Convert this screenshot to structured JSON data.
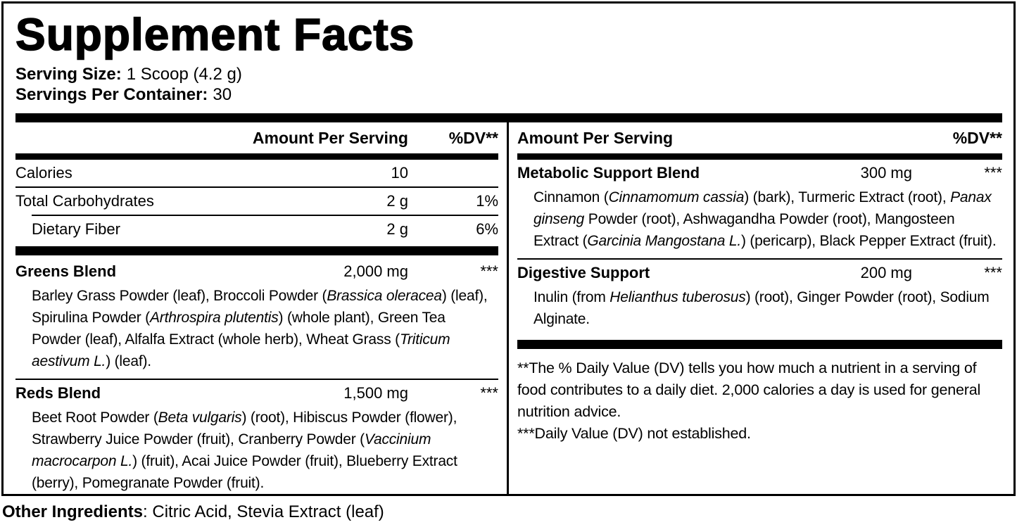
{
  "colors": {
    "text": "#000000",
    "background": "#ffffff"
  },
  "title": "Supplement Facts",
  "serving": {
    "size_label": "Serving Size:",
    "size_value": "1 Scoop (4.2 g)",
    "per_container_label": "Servings Per Container:",
    "per_container_value": "30"
  },
  "columns": {
    "left": {
      "header": {
        "amount": "Amount Per Serving",
        "dv": "%DV**"
      },
      "nutrients": [
        {
          "name": "Calories",
          "amount": "10",
          "dv": ""
        },
        {
          "name": "Total Carbohydrates",
          "amount": "2 g",
          "dv": "1%"
        },
        {
          "name": "Dietary Fiber",
          "amount": "2 g",
          "dv": "6%"
        }
      ],
      "blends": [
        {
          "name": "Greens Blend",
          "amount": "2,000 mg",
          "dv": "***",
          "ingredients": [
            {
              "t": "Barley Grass Powder (leaf), Broccoli Powder ("
            },
            {
              "t": "Brassica oleracea",
              "i": true
            },
            {
              "t": ") (leaf), Spirulina Powder ("
            },
            {
              "t": "Arthrospira plutentis",
              "i": true
            },
            {
              "t": ") (whole plant), Green Tea Powder (leaf), Alfalfa Extract (whole herb), Wheat Grass ("
            },
            {
              "t": "Triticum aestivum L.",
              "i": true
            },
            {
              "t": ") (leaf)."
            }
          ]
        },
        {
          "name": "Reds Blend",
          "amount": "1,500 mg",
          "dv": "***",
          "ingredients": [
            {
              "t": "Beet Root Powder ("
            },
            {
              "t": "Beta vulgaris",
              "i": true
            },
            {
              "t": ") (root), Hibiscus Powder (flower), Strawberry Juice Powder (fruit), Cranberry Powder ("
            },
            {
              "t": "Vaccinium macrocarpon L.",
              "i": true
            },
            {
              "t": ") (fruit), Acai Juice Powder (fruit), Blueberry Extract (berry), Pomegranate Powder (fruit)."
            }
          ]
        }
      ]
    },
    "right": {
      "header": {
        "amount": "Amount Per Serving",
        "dv": "%DV**"
      },
      "blends": [
        {
          "name": "Metabolic Support Blend",
          "amount": "300 mg",
          "dv": "***",
          "ingredients": [
            {
              "t": "Cinnamon ("
            },
            {
              "t": "Cinnamomum cassia",
              "i": true
            },
            {
              "t": ") (bark), Turmeric Extract (root), "
            },
            {
              "t": "Panax ginseng",
              "i": true
            },
            {
              "t": " Powder (root), Ashwagandha Powder (root), Mangosteen Extract ("
            },
            {
              "t": "Garcinia Mangostana L.",
              "i": true
            },
            {
              "t": ") (pericarp), Black Pepper Extract (fruit)."
            }
          ]
        },
        {
          "name": "Digestive Support",
          "amount": "200 mg",
          "dv": "***",
          "ingredients": [
            {
              "t": "Inulin (from "
            },
            {
              "t": "Helianthus tuberosus",
              "i": true
            },
            {
              "t": ") (root), Ginger Powder (root), Sodium Alginate."
            }
          ]
        }
      ],
      "footnotes": [
        "**The % Daily Value (DV) tells you how much a nutrient in a serving of food contributes to a daily diet. 2,000 calories a day is used for general nutrition advice.",
        "***Daily Value (DV) not established."
      ]
    }
  },
  "other_ingredients": {
    "label": "Other Ingredients",
    "value": ": Citric Acid, Stevia Extract (leaf)"
  }
}
